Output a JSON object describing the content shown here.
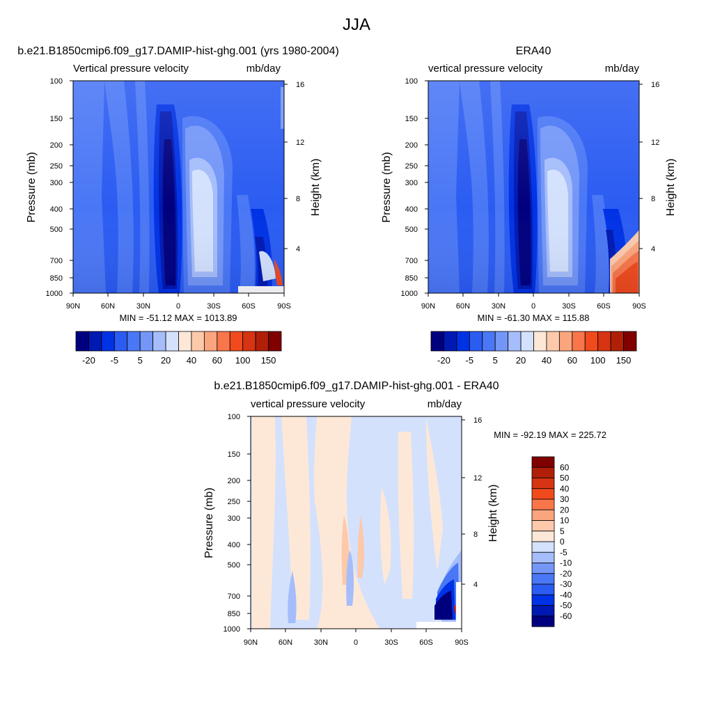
{
  "figure_title": "JJA",
  "colors": {
    "scale": [
      "#00007f",
      "#0019b2",
      "#0032e5",
      "#2b5cf2",
      "#4a77f5",
      "#7396f7",
      "#a5bdfb",
      "#d3e1fd",
      "#fde8d8",
      "#fcc9ab",
      "#fba57e",
      "#f8764a",
      "#f04a1d",
      "#d63412",
      "#b02008",
      "#800000"
    ],
    "diff_scale": [
      "#00007f",
      "#0019b2",
      "#0032e5",
      "#2b5cf2",
      "#4a77f5",
      "#7396f7",
      "#a5bdfb",
      "#d3e1fd",
      "#fde8d8",
      "#fcc9ab",
      "#fba57e",
      "#f8764a",
      "#f04a1d",
      "#d63412",
      "#b02008",
      "#800000"
    ]
  },
  "chart_data": [
    {
      "type": "heatmap",
      "title": "b.e21.B1850cmip6.f09_g17.DAMIP-hist-ghg.001 (yrs 1980-2004)",
      "left_label": "Vertical pressure velocity",
      "right_label": "mb/day",
      "ylabel": "Pressure (mb)",
      "y2label": "Height (km)",
      "x_ticks": [
        "90N",
        "60N",
        "30N",
        "0",
        "30S",
        "60S",
        "90S"
      ],
      "y_ticks": [
        "100",
        "150",
        "200",
        "250",
        "300",
        "400",
        "500",
        "700",
        "850",
        "1000"
      ],
      "y2_ticks": [
        "16",
        "12",
        "8",
        "4"
      ],
      "stats": "MIN = -51.12  MAX = 1013.89",
      "colorbar_labels": [
        "-20",
        "-5",
        "5",
        "20",
        "40",
        "60",
        "100",
        "150"
      ],
      "log_y": true,
      "ylim": [
        100,
        1000
      ],
      "xlim": [
        90,
        -90
      ]
    },
    {
      "type": "heatmap",
      "title": "ERA40",
      "left_label": "vertical pressure velocity",
      "right_label": "mb/day",
      "ylabel": "Pressure (mb)",
      "y2label": "Height (km)",
      "x_ticks": [
        "90N",
        "60N",
        "30N",
        "0",
        "30S",
        "60S",
        "90S"
      ],
      "y_ticks": [
        "100",
        "150",
        "200",
        "250",
        "300",
        "400",
        "500",
        "700",
        "850",
        "1000"
      ],
      "y2_ticks": [
        "16",
        "12",
        "8",
        "4"
      ],
      "stats": "MIN = -61.30  MAX = 115.88",
      "colorbar_labels": [
        "-20",
        "-5",
        "5",
        "20",
        "40",
        "60",
        "100",
        "150"
      ],
      "log_y": true,
      "ylim": [
        100,
        1000
      ],
      "xlim": [
        90,
        -90
      ]
    },
    {
      "type": "heatmap",
      "title": "b.e21.B1850cmip6.f09_g17.DAMIP-hist-ghg.001 - ERA40",
      "left_label": "vertical pressure velocity",
      "right_label": "mb/day",
      "ylabel": "Pressure (mb)",
      "y2label": "Height (km)",
      "x_ticks": [
        "90N",
        "60N",
        "30N",
        "0",
        "30S",
        "60S",
        "90S"
      ],
      "y_ticks": [
        "100",
        "150",
        "200",
        "250",
        "300",
        "400",
        "500",
        "700",
        "850",
        "1000"
      ],
      "y2_ticks": [
        "16",
        "12",
        "8",
        "4"
      ],
      "stats": "MIN = -92.19  MAX = 225.72",
      "colorbar_labels": [
        "60",
        "50",
        "40",
        "30",
        "20",
        "10",
        "5",
        "0",
        "-5",
        "-10",
        "-20",
        "-30",
        "-40",
        "-50",
        "-60"
      ],
      "log_y": true,
      "ylim": [
        100,
        1000
      ],
      "xlim": [
        90,
        -90
      ]
    }
  ]
}
